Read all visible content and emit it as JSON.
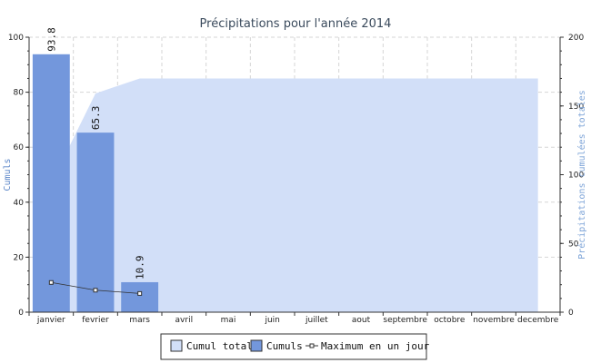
{
  "chart_data": {
    "type": "bar",
    "title": "Précipitations pour l'année 2014",
    "categories": [
      "janvier",
      "fevrier",
      "mars",
      "avril",
      "mai",
      "juin",
      "juillet",
      "aout",
      "septembre",
      "octobre",
      "novembre",
      "decembre"
    ],
    "series": [
      {
        "name": "Cumul total",
        "type": "area",
        "axis": "right",
        "values": [
          93.8,
          159.1,
          170.0,
          170.0,
          170.0,
          170.0,
          170.0,
          170.0,
          170.0,
          170.0,
          170.0,
          170.0
        ]
      },
      {
        "name": "Cumuls",
        "type": "bar",
        "axis": "left",
        "values": [
          93.8,
          65.3,
          10.9,
          null,
          null,
          null,
          null,
          null,
          null,
          null,
          null,
          null
        ],
        "labels": [
          "93.8",
          "65.3",
          "10.9"
        ]
      },
      {
        "name": "Maximum en un jour",
        "type": "line",
        "axis": "left",
        "values": [
          10.8,
          8.0,
          6.8,
          null,
          null,
          null,
          null,
          null,
          null,
          null,
          null,
          null
        ]
      }
    ],
    "ylabel": "Cumuls",
    "y2label": "Précipitations cumulées totales",
    "ylim": [
      0,
      100
    ],
    "y2lim": [
      0,
      200
    ],
    "yticks": [
      "0",
      "20",
      "40",
      "60",
      "80",
      "100"
    ],
    "y2ticks": [
      "0",
      "50",
      "100",
      "150",
      "200"
    ],
    "grid": true,
    "legend": "bottom-center"
  },
  "colors": {
    "area": "#d2dff8",
    "bar": "#7397dc",
    "line": "#333333",
    "axis_left_label": "#5b86c8",
    "axis_right_label": "#7fa5d8",
    "grid": "#d6d6d6"
  }
}
